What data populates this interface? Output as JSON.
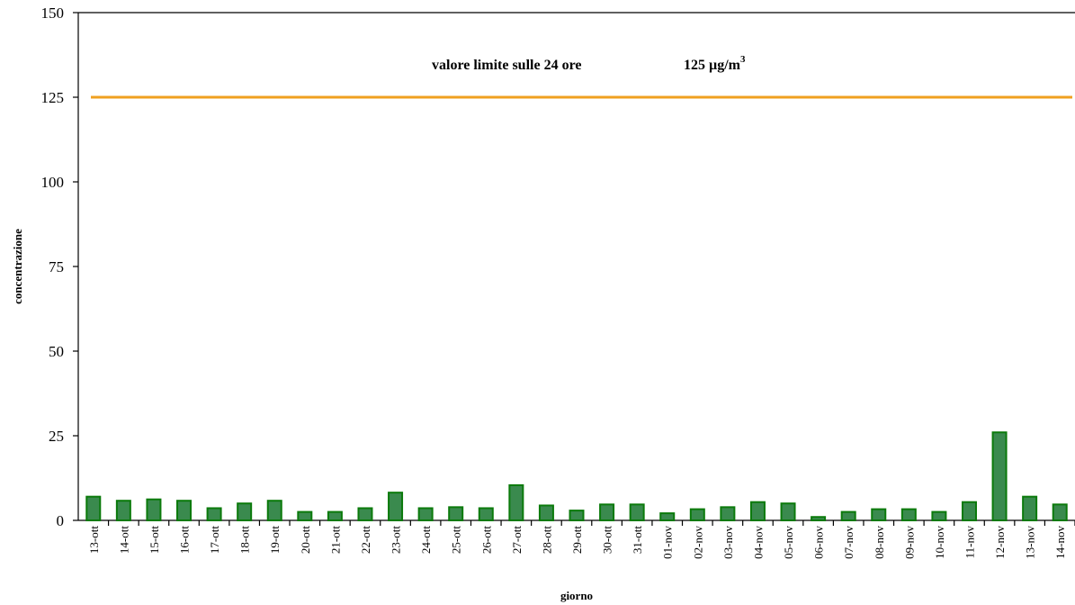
{
  "chart_data": {
    "type": "bar",
    "xlabel": "giorno",
    "ylabel": "concentrazione",
    "ylim": [
      0,
      150
    ],
    "yticks": [
      0,
      25,
      50,
      75,
      100,
      125,
      150
    ],
    "grid": false,
    "categories": [
      "13-ott",
      "14-ott",
      "15-ott",
      "16-ott",
      "17-ott",
      "18-ott",
      "19-ott",
      "20-ott",
      "21-ott",
      "22-ott",
      "23-ott",
      "24-ott",
      "25-ott",
      "26-ott",
      "27-ott",
      "28-ott",
      "29-ott",
      "30-ott",
      "31-ott",
      "01-nov",
      "02-nov",
      "03-nov",
      "04-nov",
      "05-nov",
      "06-nov",
      "07-nov",
      "08-nov",
      "09-nov",
      "10-nov",
      "11-nov",
      "12-nov",
      "13-nov",
      "14-nov"
    ],
    "values": [
      7,
      5.8,
      6.2,
      5.8,
      3.6,
      5,
      5.8,
      2.5,
      2.5,
      3.6,
      8.2,
      3.6,
      3.9,
      3.6,
      10.4,
      4.4,
      2.9,
      4.7,
      4.7,
      2.1,
      3.3,
      3.9,
      5.4,
      5,
      1,
      2.5,
      3.3,
      3.3,
      2.5,
      5.4,
      26,
      7,
      4.7
    ],
    "colors": {
      "bar_fill": "#3a8a4e",
      "bar_stroke": "#0b7a0b",
      "reference_line": "#f0a020"
    },
    "reference_line": {
      "value": 125,
      "label_text": "valore limite sulle 24 ore",
      "label_value": "125 µg/m",
      "label_superscript": "3"
    }
  }
}
